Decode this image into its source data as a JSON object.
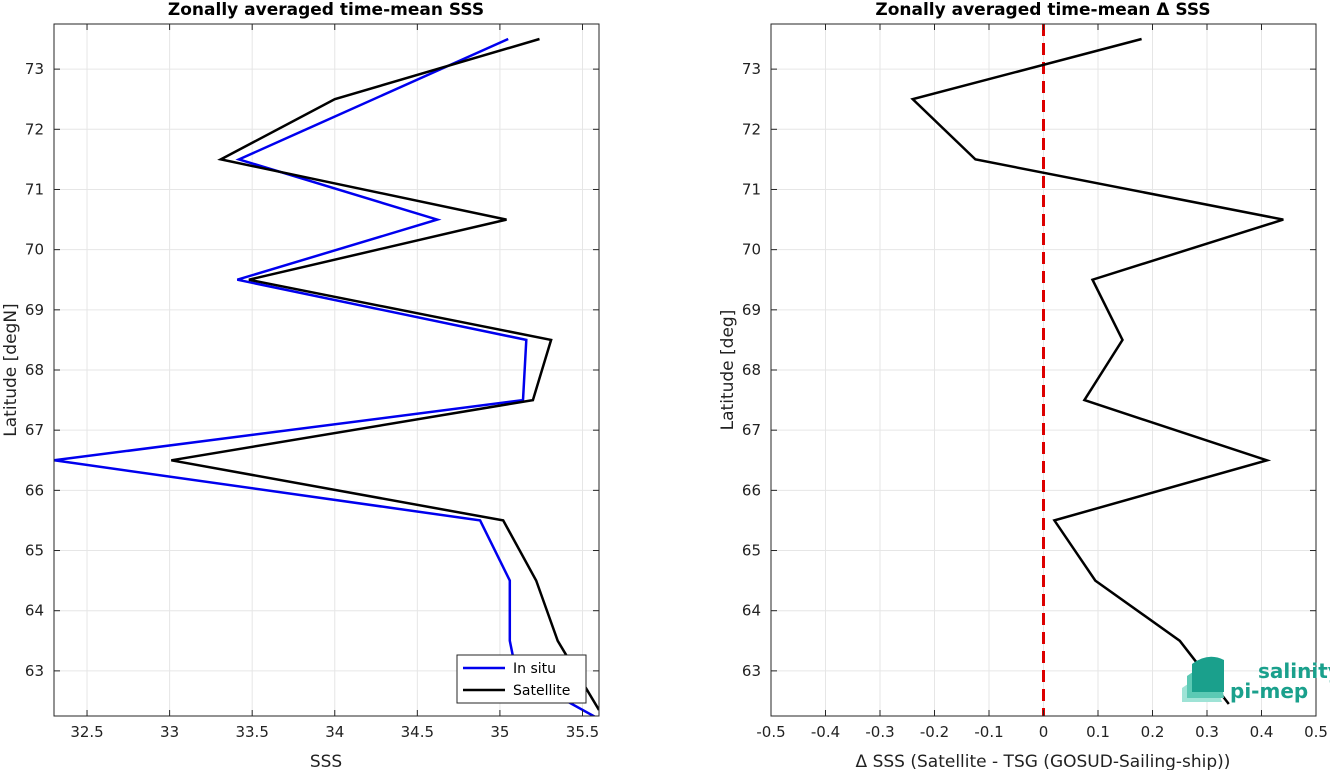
{
  "chart_data": [
    {
      "type": "line",
      "title": "Zonally averaged time-mean SSS",
      "xlabel": "SSS",
      "ylabel": "Latitude [degN]",
      "xlim": [
        32.3,
        35.6
      ],
      "ylim": [
        62.25,
        73.75
      ],
      "grid": true,
      "xticks": [
        32.5,
        33,
        33.5,
        34,
        34.5,
        35,
        35.5
      ],
      "xtick_labels": [
        "32.5",
        "33",
        "33.5",
        "34",
        "34.5",
        "35",
        "35.5"
      ],
      "yticks": [
        63,
        64,
        65,
        66,
        67,
        68,
        69,
        70,
        71,
        72,
        73
      ],
      "ytick_labels": [
        "63",
        "64",
        "65",
        "66",
        "67",
        "68",
        "69",
        "70",
        "71",
        "72",
        "73"
      ],
      "legend": {
        "location": "bottom-right",
        "entries": [
          "In situ",
          "Satellite"
        ]
      },
      "series": [
        {
          "name": "In situ",
          "color": "#0000ee",
          "x": [
            35.6,
            35.1,
            35.06,
            35.06,
            34.88,
            32.3,
            35.14,
            35.16,
            33.41,
            34.62,
            33.42,
            35.05
          ],
          "y": [
            62.2,
            62.96,
            63.5,
            64.5,
            65.5,
            66.5,
            67.5,
            68.5,
            69.5,
            70.5,
            71.5,
            73.5
          ]
        },
        {
          "name": "Satellite",
          "color": "#000000",
          "x": [
            35.6,
            35.35,
            35.22,
            35.02,
            33.01,
            35.2,
            35.31,
            33.48,
            35.04,
            33.31,
            34.0,
            35.24
          ],
          "y": [
            62.35,
            63.5,
            64.5,
            65.5,
            66.5,
            67.5,
            68.5,
            69.5,
            70.5,
            71.5,
            72.5,
            73.5
          ]
        }
      ]
    },
    {
      "type": "line",
      "title": "Zonally averaged time-mean Δ SSS",
      "xlabel": "Δ SSS (Satellite - TSG (GOSUD-Sailing-ship))",
      "ylabel": "Latitude [deg]",
      "xlim": [
        -0.5,
        0.5
      ],
      "ylim": [
        62.25,
        73.75
      ],
      "grid": true,
      "xticks": [
        -0.5,
        -0.4,
        -0.3,
        -0.2,
        -0.1,
        0,
        0.1,
        0.2,
        0.3,
        0.4,
        0.5
      ],
      "xtick_labels": [
        "-0.5",
        "-0.4",
        "-0.3",
        "-0.2",
        "-0.1",
        "0",
        "0.1",
        "0.2",
        "0.3",
        "0.4",
        "0.5"
      ],
      "yticks": [
        63,
        64,
        65,
        66,
        67,
        68,
        69,
        70,
        71,
        72,
        73
      ],
      "ytick_labels": [
        "63",
        "64",
        "65",
        "66",
        "67",
        "68",
        "69",
        "70",
        "71",
        "72",
        "73"
      ],
      "reference_line": {
        "x": 0,
        "color": "#dd0000",
        "style": "dashed"
      },
      "series": [
        {
          "color": "#000000",
          "x": [
            0.34,
            0.25,
            0.095,
            0.02,
            0.41,
            0.075,
            0.145,
            0.09,
            0.44,
            -0.125,
            -0.24,
            0.18
          ],
          "y": [
            62.45,
            63.5,
            64.5,
            65.5,
            66.5,
            67.5,
            68.5,
            69.5,
            70.5,
            71.5,
            72.5,
            73.5
          ]
        }
      ]
    }
  ],
  "logo": {
    "line1": "salinity",
    "line2": "pi-mep",
    "color": "#1aa08c"
  }
}
